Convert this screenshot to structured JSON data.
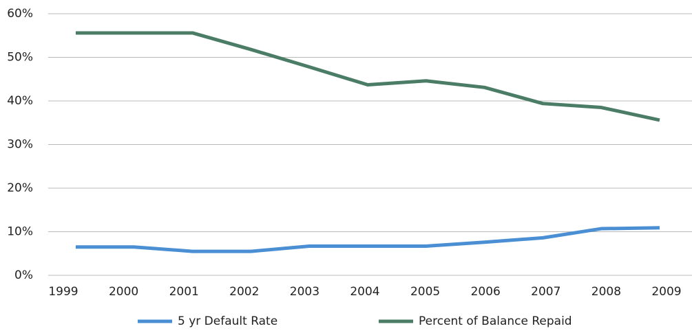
{
  "chart_data": {
    "type": "line",
    "categories": [
      "1999",
      "2000",
      "2001",
      "2002",
      "2003",
      "2004",
      "2005",
      "2006",
      "2007",
      "2008",
      "2009"
    ],
    "series": [
      {
        "name": "5 yr Default Rate",
        "color": "#4a8fd4",
        "values": [
          6.5,
          6.5,
          5.5,
          5.5,
          6.7,
          6.7,
          6.7,
          7.6,
          8.6,
          10.7,
          10.9
        ]
      },
      {
        "name": "Percent of Balance Repaid",
        "color": "#4a7c66",
        "values": [
          55.6,
          55.6,
          55.6,
          51.8,
          47.8,
          43.7,
          44.6,
          43.1,
          39.4,
          38.5,
          35.6
        ]
      }
    ],
    "ylim": [
      0,
      60
    ],
    "yticks": [
      {
        "value": 0,
        "label": "0%"
      },
      {
        "value": 10,
        "label": "10%"
      },
      {
        "value": 20,
        "label": "20%"
      },
      {
        "value": 30,
        "label": "30%"
      },
      {
        "value": 40,
        "label": "40%"
      },
      {
        "value": 50,
        "label": "50%"
      },
      {
        "value": 60,
        "label": "60%"
      }
    ],
    "grid": true,
    "legend": "bottom"
  }
}
